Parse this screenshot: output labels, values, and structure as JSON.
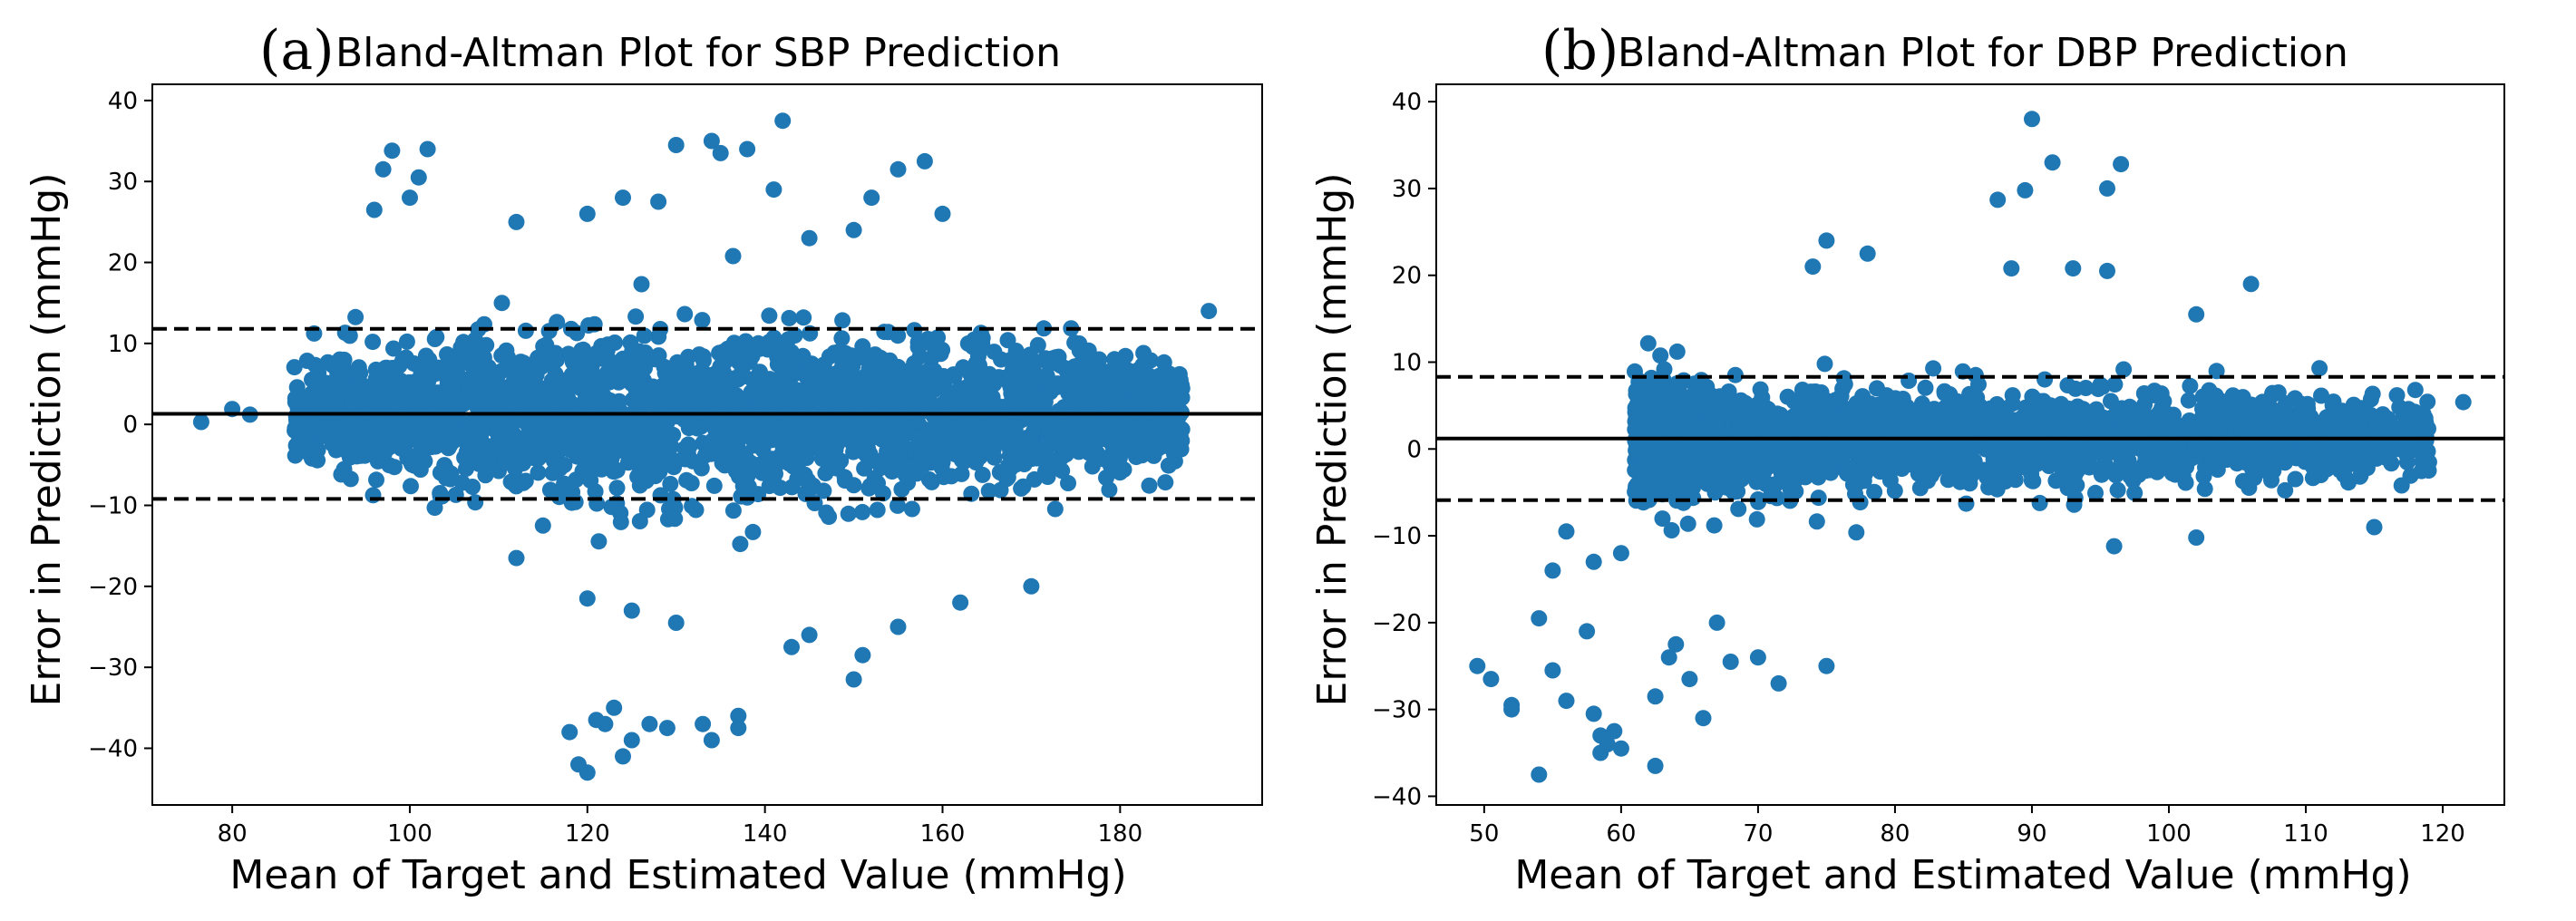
{
  "colors": {
    "points": "#1f77b4",
    "lines": "#000000",
    "background": "#ffffff"
  },
  "chart_data": [
    {
      "type": "scatter",
      "id": "sbp",
      "panel_letter": "(a)",
      "title": "Bland-Altman Plot for SBP Prediction",
      "xlabel": "Mean of Target and Estimated Value (mmHg)",
      "ylabel": "Error in Prediction (mmHg)",
      "xlim": [
        71,
        196
      ],
      "ylim": [
        -47,
        42
      ],
      "xticks": [
        80,
        100,
        120,
        140,
        160,
        180
      ],
      "yticks": [
        -40,
        -30,
        -20,
        -10,
        0,
        10,
        20,
        30,
        40
      ],
      "mean_line": 1.3,
      "upper_loa": 11.8,
      "lower_loa": -9.2,
      "cloud": {
        "x_center": 137,
        "x_half_width": 50,
        "y_mean": 1.3,
        "y_spread": 5.2,
        "count": 2600,
        "seed": 11
      },
      "outliers": [
        [
          76.5,
          0.3
        ],
        [
          80,
          1.9
        ],
        [
          82,
          1.2
        ],
        [
          96,
          26.5
        ],
        [
          97,
          31.5
        ],
        [
          98,
          33.8
        ],
        [
          100,
          28.0
        ],
        [
          101,
          30.5
        ],
        [
          102,
          34.0
        ],
        [
          130,
          34.5
        ],
        [
          134,
          35.0
        ],
        [
          135,
          33.5
        ],
        [
          138,
          34.0
        ],
        [
          142,
          37.5
        ],
        [
          141,
          29.0
        ],
        [
          155,
          31.5
        ],
        [
          158,
          32.5
        ],
        [
          152,
          28.0
        ],
        [
          190,
          14.0
        ],
        [
          186,
          1.8
        ],
        [
          112,
          25.0
        ],
        [
          120,
          26.0
        ],
        [
          124,
          28.0
        ],
        [
          128,
          27.5
        ],
        [
          160,
          26.0
        ],
        [
          145,
          23.0
        ],
        [
          150,
          24.0
        ],
        [
          118,
          -38.0
        ],
        [
          119,
          -42.0
        ],
        [
          120,
          -43.0
        ],
        [
          121,
          -36.5
        ],
        [
          122,
          -37.0
        ],
        [
          123,
          -35.0
        ],
        [
          124,
          -41.0
        ],
        [
          125,
          -39.0
        ],
        [
          127,
          -37.0
        ],
        [
          129,
          -37.5
        ],
        [
          133,
          -37.0
        ],
        [
          134,
          -39.0
        ],
        [
          137,
          -36.0
        ],
        [
          137,
          -37.5
        ],
        [
          150,
          -31.5
        ],
        [
          151,
          -28.5
        ],
        [
          143,
          -27.5
        ],
        [
          145,
          -26.0
        ],
        [
          120,
          -21.5
        ],
        [
          125,
          -23.0
        ],
        [
          130,
          -24.5
        ],
        [
          155,
          -25.0
        ],
        [
          162,
          -22.0
        ],
        [
          170,
          -20.0
        ],
        [
          112,
          -16.5
        ],
        [
          115,
          -12.5
        ]
      ]
    },
    {
      "type": "scatter",
      "id": "dbp",
      "panel_letter": "(b)",
      "title": "Bland-Altman Plot for DBP Prediction",
      "xlabel": "Mean of Target and Estimated Value (mmHg)",
      "ylabel": "Error in Prediction (mmHg)",
      "xlim": [
        46.5,
        124.5
      ],
      "ylim": [
        -41,
        42
      ],
      "xticks": [
        50,
        60,
        70,
        80,
        90,
        100,
        110,
        120
      ],
      "yticks": [
        -40,
        -30,
        -20,
        -10,
        0,
        10,
        20,
        30,
        40
      ],
      "mean_line": 1.2,
      "upper_loa": 8.3,
      "lower_loa": -5.9,
      "cloud": {
        "x_center": 80,
        "x_half_width": 19,
        "y_mean": 1.2,
        "y_spread": 3.4,
        "count": 2200,
        "seed": 23
      },
      "outliers": [
        [
          49.5,
          -25.0
        ],
        [
          50.5,
          -26.5
        ],
        [
          52,
          -29.5
        ],
        [
          52,
          -30.0
        ],
        [
          54,
          -37.5
        ],
        [
          55,
          -25.5
        ],
        [
          56,
          -29.0
        ],
        [
          57.5,
          -21.0
        ],
        [
          58,
          -30.5
        ],
        [
          58.5,
          -33.0
        ],
        [
          58.5,
          -35.0
        ],
        [
          59,
          -34.0
        ],
        [
          59.5,
          -32.5
        ],
        [
          60,
          -34.5
        ],
        [
          62.5,
          -36.5
        ],
        [
          62.5,
          -28.5
        ],
        [
          63.5,
          -24.0
        ],
        [
          64,
          -22.5
        ],
        [
          65,
          -26.5
        ],
        [
          66,
          -31.0
        ],
        [
          67,
          -20.0
        ],
        [
          68,
          -24.5
        ],
        [
          70,
          -24.0
        ],
        [
          71.5,
          -27.0
        ],
        [
          75,
          -25.0
        ],
        [
          54,
          -19.5
        ],
        [
          56,
          -9.5
        ],
        [
          58,
          -13.0
        ],
        [
          60,
          -12.0
        ],
        [
          55,
          -14.0
        ],
        [
          90,
          38.0
        ],
        [
          91.5,
          33.0
        ],
        [
          96.5,
          32.8
        ],
        [
          87.5,
          28.7
        ],
        [
          89.5,
          29.8
        ],
        [
          95.5,
          30.0
        ],
        [
          88.5,
          20.8
        ],
        [
          93,
          20.8
        ],
        [
          95.5,
          20.5
        ],
        [
          78,
          22.5
        ],
        [
          75,
          24.0
        ],
        [
          74,
          21.0
        ],
        [
          106,
          19.0
        ],
        [
          102,
          15.5
        ],
        [
          121.5,
          5.4
        ],
        [
          118,
          6.8
        ],
        [
          116,
          3.5
        ],
        [
          119,
          -1.5
        ],
        [
          115,
          -9.0
        ],
        [
          117,
          -4.2
        ],
        [
          111,
          9.3
        ],
        [
          108,
          6.5
        ],
        [
          102,
          -10.2
        ],
        [
          96,
          -11.2
        ]
      ]
    }
  ]
}
